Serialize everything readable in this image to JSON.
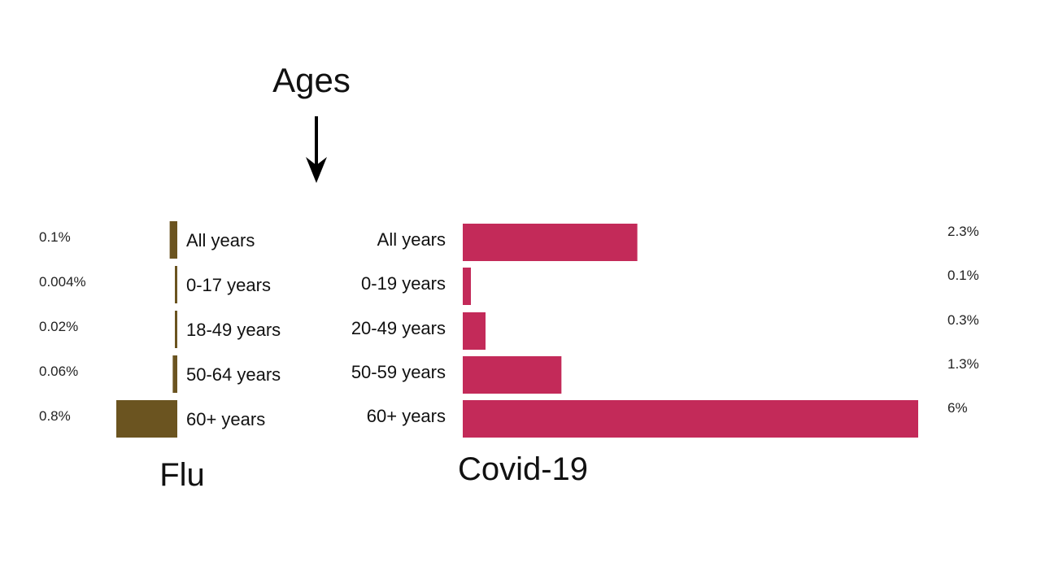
{
  "header": "Ages",
  "colors": {
    "flu": "#6b5420",
    "covid": "#c32a59",
    "text": "#111111"
  },
  "chart_data": [
    {
      "type": "bar",
      "orientation": "horizontal",
      "direction": "leftward",
      "title": "Flu",
      "categories": [
        "All years",
        "0-17 years",
        "18-49 years",
        "50-64 years",
        "60+ years"
      ],
      "values": [
        0.1,
        0.004,
        0.02,
        0.06,
        0.8
      ],
      "value_labels": [
        "0.1%",
        "0.004%",
        "0.02%",
        "0.06%",
        "0.8%"
      ]
    },
    {
      "type": "bar",
      "orientation": "horizontal",
      "direction": "rightward",
      "title": "Covid-19",
      "categories": [
        "All years",
        "0-19 years",
        "20-49 years",
        "50-59 years",
        "60+ years"
      ],
      "values": [
        2.3,
        0.1,
        0.3,
        1.3,
        6
      ],
      "value_labels": [
        "2.3%",
        "0.1%",
        "0.3%",
        "1.3%",
        "6%"
      ]
    }
  ]
}
